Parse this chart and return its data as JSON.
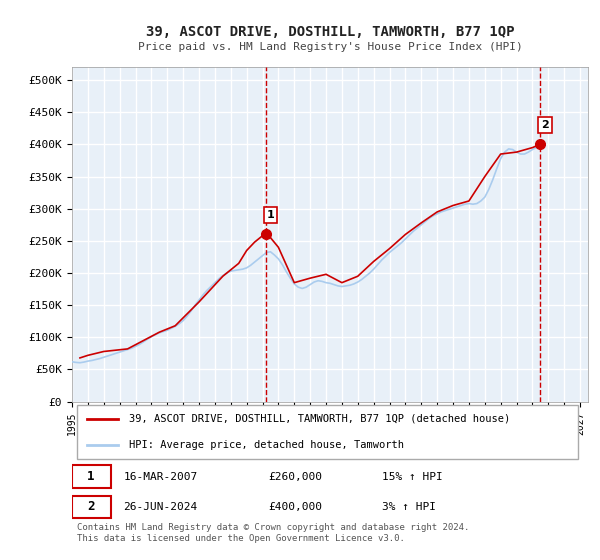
{
  "title": "39, ASCOT DRIVE, DOSTHILL, TAMWORTH, B77 1QP",
  "subtitle": "Price paid vs. HM Land Registry's House Price Index (HPI)",
  "ylabel": "",
  "bg_color": "#ffffff",
  "plot_bg_color": "#e8f0f8",
  "grid_color": "#ffffff",
  "line1_color": "#cc0000",
  "line2_color": "#aaccee",
  "vline_color": "#cc0000",
  "marker_color": "#cc0000",
  "ylim": [
    0,
    520000
  ],
  "yticks": [
    0,
    50000,
    100000,
    150000,
    200000,
    250000,
    300000,
    350000,
    400000,
    450000,
    500000
  ],
  "ytick_labels": [
    "£0",
    "£50K",
    "£100K",
    "£150K",
    "£200K",
    "£250K",
    "£300K",
    "£350K",
    "£400K",
    "£450K",
    "£500K"
  ],
  "xlim_start": 1995.0,
  "xlim_end": 2027.5,
  "xtick_years": [
    1995,
    1996,
    1997,
    1998,
    1999,
    2000,
    2001,
    2002,
    2003,
    2004,
    2005,
    2006,
    2007,
    2008,
    2009,
    2010,
    2011,
    2012,
    2013,
    2014,
    2015,
    2016,
    2017,
    2018,
    2019,
    2020,
    2021,
    2022,
    2023,
    2024,
    2025,
    2026,
    2027
  ],
  "sale1_x": 2007.21,
  "sale1_y": 260000,
  "sale1_label": "1",
  "sale2_x": 2024.49,
  "sale2_y": 400000,
  "sale2_label": "2",
  "legend_line1": "39, ASCOT DRIVE, DOSTHILL, TAMWORTH, B77 1QP (detached house)",
  "legend_line2": "HPI: Average price, detached house, Tamworth",
  "table_row1": [
    "1",
    "16-MAR-2007",
    "£260,000",
    "15% ↑ HPI"
  ],
  "table_row2": [
    "2",
    "26-JUN-2024",
    "£400,000",
    "3% ↑ HPI"
  ],
  "footer": "Contains HM Land Registry data © Crown copyright and database right 2024.\nThis data is licensed under the Open Government Licence v3.0.",
  "hpi_data": {
    "years": [
      1995.0,
      1995.25,
      1995.5,
      1995.75,
      1996.0,
      1996.25,
      1996.5,
      1996.75,
      1997.0,
      1997.25,
      1997.5,
      1997.75,
      1998.0,
      1998.25,
      1998.5,
      1998.75,
      1999.0,
      1999.25,
      1999.5,
      1999.75,
      2000.0,
      2000.25,
      2000.5,
      2000.75,
      2001.0,
      2001.25,
      2001.5,
      2001.75,
      2002.0,
      2002.25,
      2002.5,
      2002.75,
      2003.0,
      2003.25,
      2003.5,
      2003.75,
      2004.0,
      2004.25,
      2004.5,
      2004.75,
      2005.0,
      2005.25,
      2005.5,
      2005.75,
      2006.0,
      2006.25,
      2006.5,
      2006.75,
      2007.0,
      2007.25,
      2007.5,
      2007.75,
      2008.0,
      2008.25,
      2008.5,
      2008.75,
      2009.0,
      2009.25,
      2009.5,
      2009.75,
      2010.0,
      2010.25,
      2010.5,
      2010.75,
      2011.0,
      2011.25,
      2011.5,
      2011.75,
      2012.0,
      2012.25,
      2012.5,
      2012.75,
      2013.0,
      2013.25,
      2013.5,
      2013.75,
      2014.0,
      2014.25,
      2014.5,
      2014.75,
      2015.0,
      2015.25,
      2015.5,
      2015.75,
      2016.0,
      2016.25,
      2016.5,
      2016.75,
      2017.0,
      2017.25,
      2017.5,
      2017.75,
      2018.0,
      2018.25,
      2018.5,
      2018.75,
      2019.0,
      2019.25,
      2019.5,
      2019.75,
      2020.0,
      2020.25,
      2020.5,
      2020.75,
      2021.0,
      2021.25,
      2021.5,
      2021.75,
      2022.0,
      2022.25,
      2022.5,
      2022.75,
      2023.0,
      2023.25,
      2023.5,
      2023.75,
      2024.0,
      2024.25,
      2024.5
    ],
    "values": [
      62000,
      61000,
      60500,
      61500,
      63000,
      64000,
      65500,
      67000,
      69000,
      71000,
      73000,
      75000,
      77000,
      79000,
      81000,
      83000,
      86000,
      89000,
      93000,
      97000,
      101000,
      104000,
      107000,
      109000,
      111000,
      114000,
      117000,
      121000,
      126000,
      133000,
      141000,
      150000,
      158000,
      166000,
      173000,
      179000,
      185000,
      191000,
      196000,
      200000,
      203000,
      204000,
      205000,
      206000,
      208000,
      212000,
      217000,
      222000,
      227000,
      232000,
      233000,
      228000,
      222000,
      213000,
      202000,
      192000,
      183000,
      178000,
      176000,
      178000,
      182000,
      186000,
      188000,
      187000,
      185000,
      184000,
      182000,
      180000,
      179000,
      180000,
      181000,
      183000,
      186000,
      190000,
      195000,
      200000,
      206000,
      213000,
      220000,
      226000,
      232000,
      237000,
      242000,
      247000,
      253000,
      259000,
      265000,
      270000,
      275000,
      280000,
      285000,
      289000,
      292000,
      295000,
      297000,
      299000,
      301000,
      303000,
      305000,
      307000,
      308000,
      307000,
      308000,
      312000,
      318000,
      330000,
      345000,
      362000,
      378000,
      388000,
      393000,
      392000,
      388000,
      385000,
      385000,
      388000,
      392000,
      395000,
      398000
    ]
  },
  "price_data": {
    "years": [
      1995.5,
      1996.0,
      1997.0,
      1998.5,
      1999.5,
      2000.5,
      2001.5,
      2003.0,
      2004.5,
      2005.0,
      2005.5,
      2006.0,
      2006.5,
      2007.0,
      2007.21,
      2007.5,
      2008.0,
      2009.0,
      2010.0,
      2011.0,
      2012.0,
      2013.0,
      2014.0,
      2015.0,
      2016.0,
      2017.0,
      2018.0,
      2019.0,
      2020.0,
      2021.0,
      2022.0,
      2023.0,
      2024.0,
      2024.49
    ],
    "values": [
      68000,
      72000,
      78000,
      82000,
      95000,
      108000,
      118000,
      155000,
      195000,
      205000,
      215000,
      235000,
      248000,
      258000,
      260000,
      255000,
      240000,
      185000,
      192000,
      198000,
      185000,
      195000,
      218000,
      238000,
      260000,
      278000,
      295000,
      305000,
      312000,
      350000,
      385000,
      388000,
      395000,
      400000
    ]
  }
}
